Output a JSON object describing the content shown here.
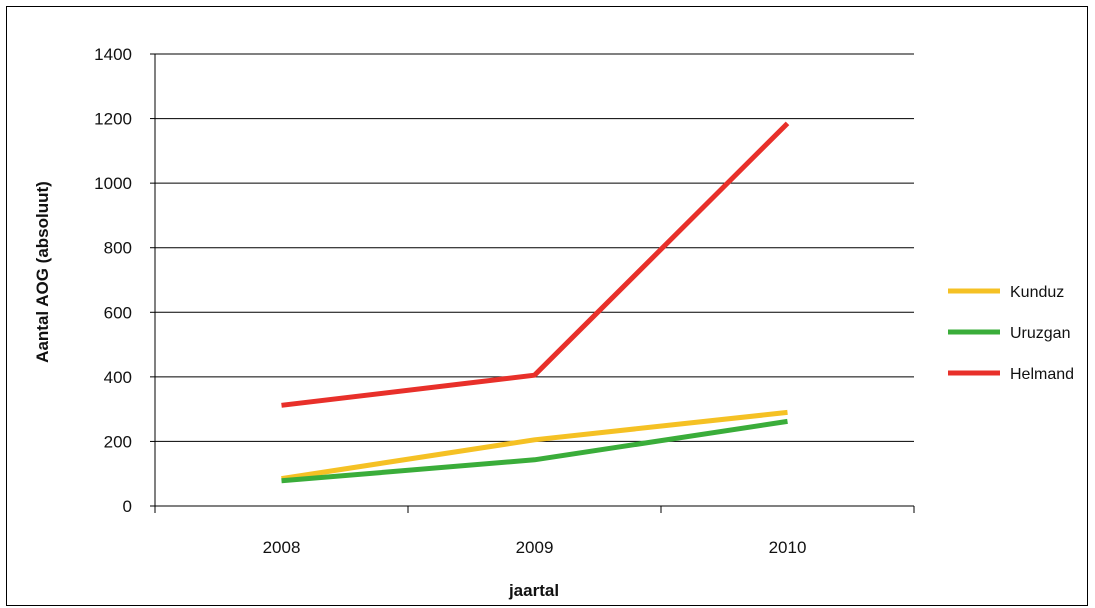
{
  "chart_data": {
    "type": "line",
    "title": "",
    "xlabel": "jaartal",
    "ylabel": "Aantal AOG (absoluut)",
    "categories": [
      "2008",
      "2009",
      "2010"
    ],
    "ylim": [
      0,
      1400
    ],
    "yticks": [
      0,
      200,
      400,
      600,
      800,
      1000,
      1200,
      1400
    ],
    "grid": true,
    "legend_position": "right",
    "series": [
      {
        "name": "Kunduz",
        "color": "#f5c124",
        "values": [
          85,
          205,
          290
        ]
      },
      {
        "name": "Uruzgan",
        "color": "#3aad3a",
        "values": [
          78,
          143,
          262
        ]
      },
      {
        "name": "Helmand",
        "color": "#e8302a",
        "values": [
          312,
          405,
          1185
        ]
      }
    ]
  }
}
